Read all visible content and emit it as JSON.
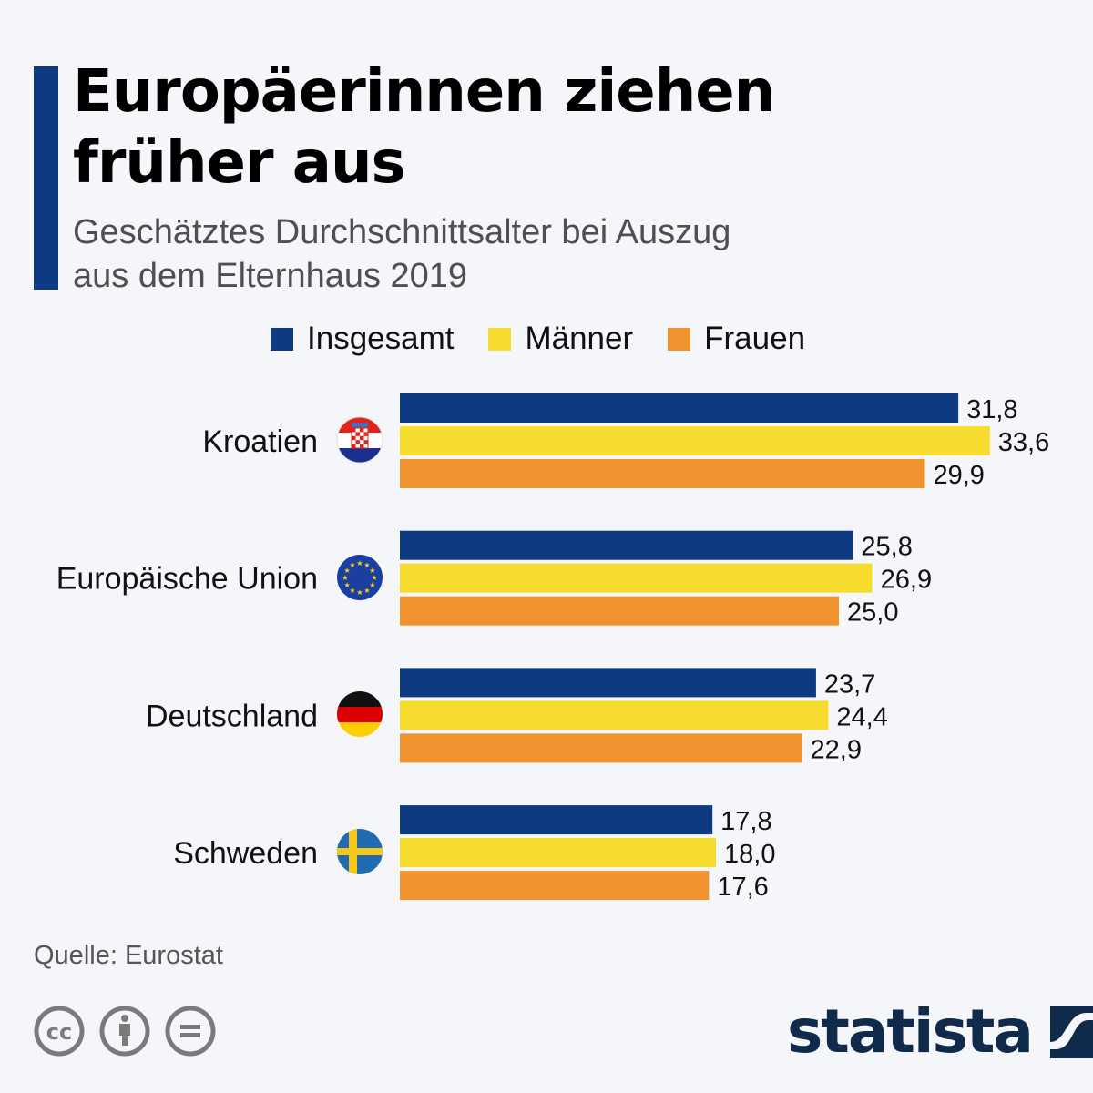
{
  "header": {
    "title_line1": "Europäerinnen ziehen",
    "title_line2": "früher aus",
    "subtitle_line1": "Geschätztes Durchschnittsalter bei Auszug",
    "subtitle_line2": "aus dem Elternhaus 2019"
  },
  "colors": {
    "accent": "#0d3a80",
    "insgesamt": "#0d3a80",
    "maenner": "#f5dc2d",
    "frauen": "#f0922e",
    "logo": "#0f2a4a"
  },
  "legend": [
    {
      "label": "Insgesamt",
      "color": "#0d3a80"
    },
    {
      "label": "Männer",
      "color": "#f5dc2d"
    },
    {
      "label": "Frauen",
      "color": "#f0922e"
    }
  ],
  "chart_data": {
    "type": "bar",
    "orientation": "horizontal",
    "title": "Europäerinnen ziehen früher aus",
    "subtitle": "Geschätztes Durchschnittsalter bei Auszug aus dem Elternhaus 2019",
    "categories": [
      "Kroatien",
      "Europäische Union",
      "Deutschland",
      "Schweden"
    ],
    "category_icons": [
      "flag-croatia",
      "flag-eu",
      "flag-germany",
      "flag-sweden"
    ],
    "series": [
      {
        "name": "Insgesamt",
        "values": [
          31.8,
          25.8,
          23.7,
          17.8
        ],
        "labels": [
          "31,8",
          "25,8",
          "23,7",
          "17,8"
        ]
      },
      {
        "name": "Männer",
        "values": [
          33.6,
          26.9,
          24.4,
          18.0
        ],
        "labels": [
          "33,6",
          "26,9",
          "24,4",
          "18,0"
        ]
      },
      {
        "name": "Frauen",
        "values": [
          29.9,
          25.0,
          22.9,
          17.6
        ],
        "labels": [
          "29,9",
          "25,0",
          "22,9",
          "17,6"
        ]
      }
    ],
    "xlabel": "",
    "ylabel": "",
    "xlim": [
      0,
      35
    ],
    "grid": false,
    "legend_position": "top"
  },
  "footer": {
    "source": "Quelle: Eurostat",
    "license_icons": [
      "cc-icon",
      "attribution-icon",
      "no-derivatives-icon"
    ],
    "brand": "statista"
  }
}
